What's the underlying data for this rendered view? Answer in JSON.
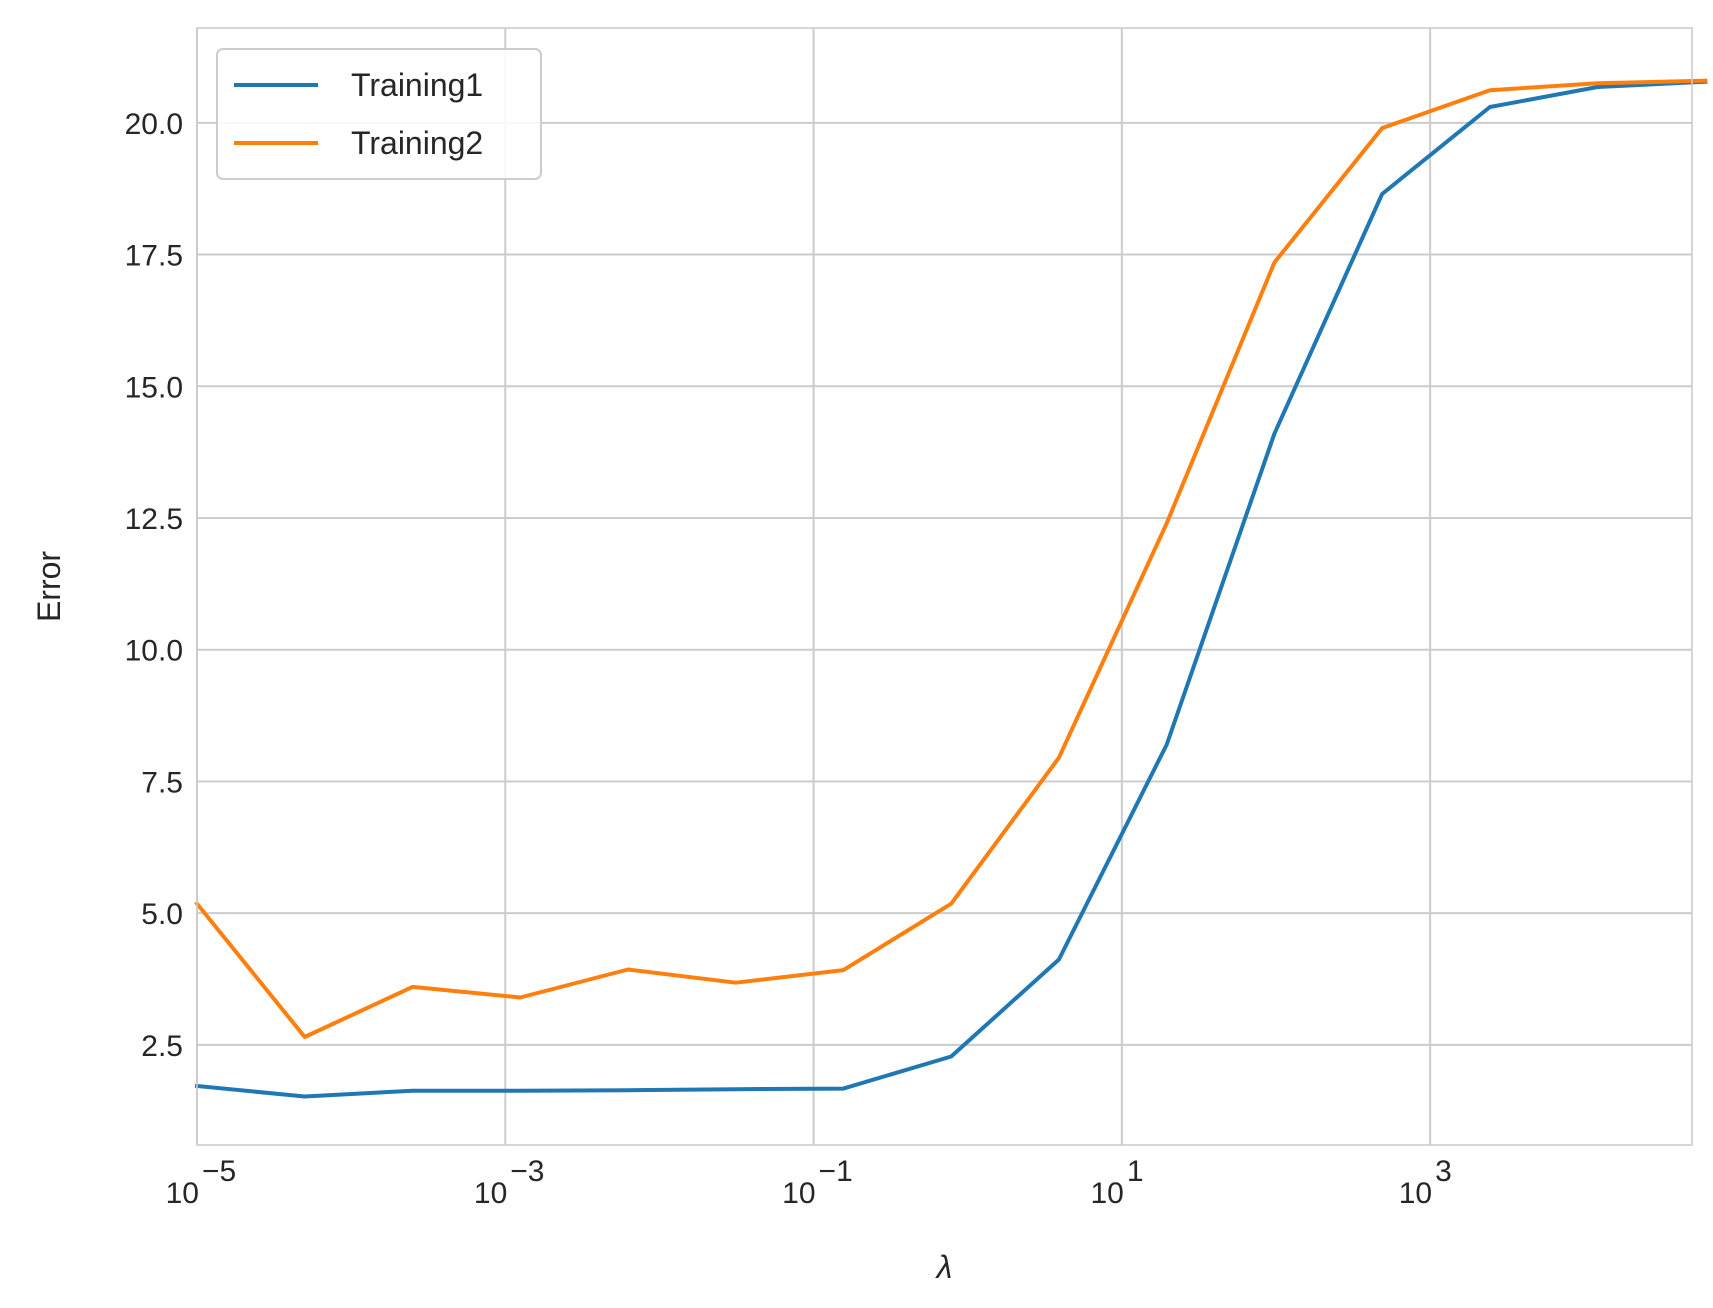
{
  "chart_data": {
    "type": "line",
    "x_scale": "log",
    "xlim": [
      1e-05,
      50000
    ],
    "ylim": [
      0.6,
      21.8
    ],
    "xlabel": "λ",
    "ylabel": "Error",
    "grid": true,
    "legend_position": "top-left",
    "x": [
      1e-05,
      5e-05,
      0.00025,
      0.00125,
      0.00625,
      0.03125,
      0.15625,
      0.78125,
      3.90625,
      19.53125,
      97.65625,
      488.28125,
      2441.40625,
      12207.03125,
      61035.15625
    ],
    "series": [
      {
        "name": "Training1",
        "color": "#1f77b4",
        "values": [
          1.72,
          1.52,
          1.63,
          1.63,
          1.64,
          1.66,
          1.67,
          2.28,
          4.12,
          8.2,
          14.1,
          18.65,
          20.3,
          20.68,
          20.78
        ]
      },
      {
        "name": "Training2",
        "color": "#ff7f0e",
        "values": [
          5.18,
          2.65,
          3.6,
          3.4,
          3.93,
          3.68,
          3.92,
          5.18,
          7.95,
          12.4,
          17.35,
          19.9,
          20.62,
          20.75,
          20.8
        ]
      }
    ],
    "y_ticks": [
      {
        "value": 2.5,
        "label": "2.5"
      },
      {
        "value": 5.0,
        "label": "5.0"
      },
      {
        "value": 7.5,
        "label": "7.5"
      },
      {
        "value": 10.0,
        "label": "10.0"
      },
      {
        "value": 12.5,
        "label": "12.5"
      },
      {
        "value": 15.0,
        "label": "15.0"
      },
      {
        "value": 17.5,
        "label": "17.5"
      },
      {
        "value": 20.0,
        "label": "20.0"
      }
    ],
    "x_ticks": [
      {
        "value": 1e-05,
        "base": "10",
        "exp": "−5"
      },
      {
        "value": 0.001,
        "base": "10",
        "exp": "−3"
      },
      {
        "value": 0.1,
        "base": "10",
        "exp": "−1"
      },
      {
        "value": 10,
        "base": "10",
        "exp": "1"
      },
      {
        "value": 1000,
        "base": "10",
        "exp": "3"
      }
    ]
  }
}
